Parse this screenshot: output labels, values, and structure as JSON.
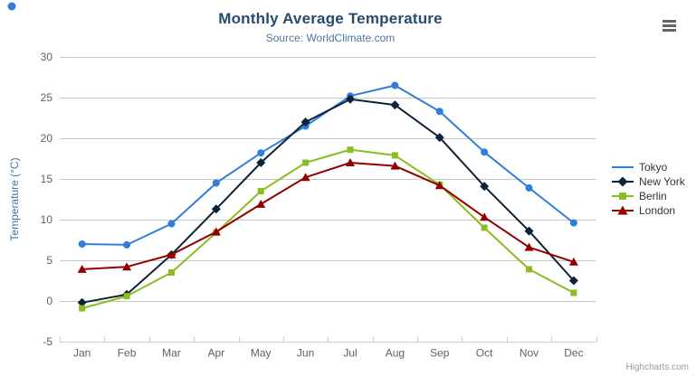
{
  "header": {
    "title": "Monthly Average Temperature",
    "subtitle": "Source: WorldClimate.com"
  },
  "chart_data": {
    "type": "line",
    "title": "Monthly Average Temperature",
    "subtitle": "Source: WorldClimate.com",
    "categories": [
      "Jan",
      "Feb",
      "Mar",
      "Apr",
      "May",
      "Jun",
      "Jul",
      "Aug",
      "Sep",
      "Oct",
      "Nov",
      "Dec"
    ],
    "series": [
      {
        "name": "Tokyo",
        "marker": "circle",
        "color": "#2f7ed8",
        "values": [
          7.0,
          6.9,
          9.5,
          14.5,
          18.2,
          21.5,
          25.2,
          26.5,
          23.3,
          18.3,
          13.9,
          9.6
        ]
      },
      {
        "name": "New York",
        "marker": "diamond",
        "color": "#0d233a",
        "values": [
          -0.2,
          0.8,
          5.7,
          11.3,
          17.0,
          22.0,
          24.8,
          24.1,
          20.1,
          14.1,
          8.6,
          2.5
        ]
      },
      {
        "name": "Berlin",
        "marker": "square",
        "color": "#8bbc21",
        "values": [
          -0.9,
          0.6,
          3.5,
          8.4,
          13.5,
          17.0,
          18.6,
          17.9,
          14.3,
          9.0,
          3.9,
          1.0
        ]
      },
      {
        "name": "London",
        "marker": "triangle",
        "color": "#910000",
        "values": [
          3.9,
          4.2,
          5.7,
          8.5,
          11.9,
          15.2,
          17.0,
          16.6,
          14.2,
          10.3,
          6.6,
          4.8
        ]
      }
    ],
    "xlabel": "",
    "ylabel": "Temperature (°C)",
    "ylim": [
      -5,
      30
    ],
    "ytick_step": 5,
    "grid": true,
    "legend_position": "right"
  },
  "icons": {
    "context_menu": "hamburger-menu"
  },
  "credits": {
    "label": "Highcharts.com"
  },
  "colors": {
    "title": "#274b6d",
    "subtitle": "#4d759e",
    "axis_title": "#4572a7",
    "axis_labels": "#606060",
    "grid": "#c8c8c8",
    "axis_line": "#c0d0e0",
    "legend_text": "#333333",
    "credits": "#999999",
    "menu_icon": "#666666"
  }
}
